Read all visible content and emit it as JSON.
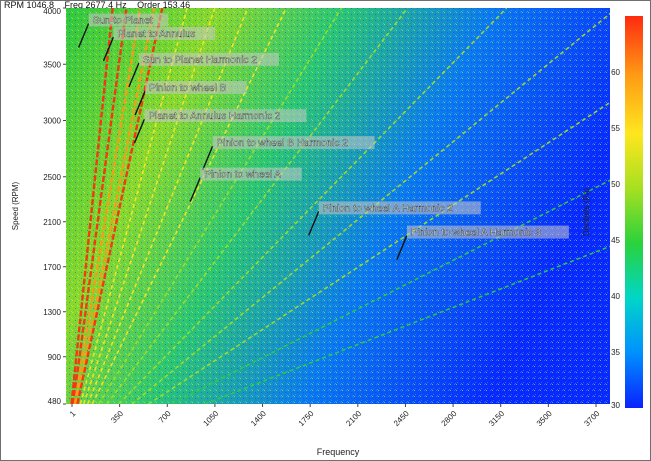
{
  "readout": {
    "rpm": "RPM 1046.8",
    "freq": "Freq 2677.4 Hz",
    "order": "Order 153.46"
  },
  "chart_data": {
    "type": "heatmap",
    "xlabel": "Frequency",
    "ylabel": "Speed (RPM)",
    "xlim": [
      1,
      3950
    ],
    "ylim": [
      480,
      4000
    ],
    "x_ticks": [
      "1",
      "350",
      "700",
      "1050",
      "1400",
      "1750",
      "2100",
      "2450",
      "2800",
      "3150",
      "3500",
      "3700"
    ],
    "y_ticks": [
      "480",
      "900",
      "1300",
      "1700",
      "2100",
      "2500",
      "3000",
      "3500",
      "4000"
    ],
    "y_tick_values": [
      480,
      900,
      1300,
      1700,
      2100,
      2500,
      3000,
      3500,
      4000
    ],
    "colorbar": {
      "label": "Decibels (Pa)",
      "range": [
        30,
        65
      ],
      "ticks": [
        "30",
        "35",
        "40",
        "45",
        "50",
        "55",
        "60"
      ],
      "tick_values": [
        30,
        35,
        40,
        45,
        50,
        55,
        60
      ],
      "colors": [
        "#0a22ff",
        "#0090ff",
        "#00d6c8",
        "#2ad23c",
        "#a6e020",
        "#ffe61e",
        "#ff9a14",
        "#ff2a10"
      ]
    },
    "annotations": [
      {
        "text": "Sun to Planet",
        "x": 180,
        "y": 3880
      },
      {
        "text": "Planet to Annulus",
        "x": 360,
        "y": 3760
      },
      {
        "text": "Sun to Planet Harmonic 2",
        "x": 545,
        "y": 3530
      },
      {
        "text": "Pinion to wheel B",
        "x": 590,
        "y": 3280
      },
      {
        "text": "Planet to Annulus Harmonic 2",
        "x": 585,
        "y": 3030
      },
      {
        "text": "Pinion to wheel B Harmonic 2",
        "x": 1080,
        "y": 2790
      },
      {
        "text": "Pinion to wheel A",
        "x": 990,
        "y": 2510
      },
      {
        "text": "Pinion to wheel A Harmonic 2",
        "x": 1850,
        "y": 2210
      },
      {
        "text": "Pinion to wheel A Harmonic 3",
        "x": 2490,
        "y": 1995
      }
    ],
    "order_lines": [
      {
        "slope": 0.085,
        "level": 64
      },
      {
        "slope": 0.11,
        "level": 63
      },
      {
        "slope": 0.135,
        "level": 60
      },
      {
        "slope": 0.16,
        "level": 62
      },
      {
        "slope": 0.175,
        "level": 63
      },
      {
        "slope": 0.22,
        "level": 57
      },
      {
        "slope": 0.27,
        "level": 56
      },
      {
        "slope": 0.33,
        "level": 55
      },
      {
        "slope": 0.4,
        "level": 53
      },
      {
        "slope": 0.5,
        "level": 52
      },
      {
        "slope": 0.62,
        "level": 52
      },
      {
        "slope": 0.8,
        "level": 52
      },
      {
        "slope": 1.0,
        "level": 50
      },
      {
        "slope": 1.25,
        "level": 49
      },
      {
        "slope": 1.6,
        "level": 47
      },
      {
        "slope": 2.1,
        "level": 44
      }
    ]
  }
}
